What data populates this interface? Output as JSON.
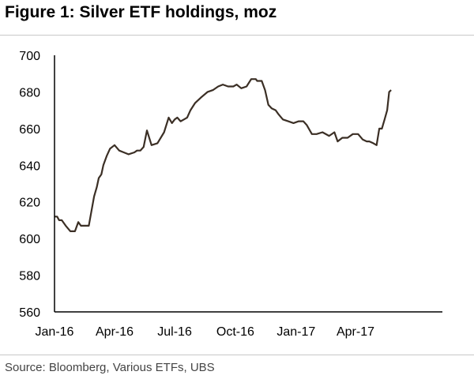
{
  "header": {
    "title": "Figure 1: Silver ETF holdings, moz"
  },
  "footer": {
    "source": "Source:  Bloomberg, Various ETFs, UBS"
  },
  "colors": {
    "line": "#3b2f25",
    "axis": "#000000",
    "rule": "#c8c8c8"
  },
  "chart_data": {
    "type": "line",
    "title": "Figure 1: Silver ETF holdings, moz",
    "xlabel": "",
    "ylabel": "",
    "ylim": [
      560,
      700
    ],
    "yticks": [
      560,
      580,
      600,
      620,
      640,
      660,
      680,
      700
    ],
    "xticks": [
      "Jan-16",
      "Apr-16",
      "Jul-16",
      "Oct-16",
      "Jan-17",
      "Apr-17"
    ],
    "xlim": [
      "2016-01-01",
      "2017-05-25"
    ],
    "grid": false,
    "legend": "none",
    "series": [
      {
        "x": [
          "2016-01-01",
          "2016-01-05",
          "2016-01-08",
          "2016-01-12",
          "2016-01-18",
          "2016-01-25",
          "2016-02-01",
          "2016-02-06",
          "2016-02-10",
          "2016-02-13",
          "2016-02-17",
          "2016-02-22",
          "2016-03-01",
          "2016-03-05",
          "2016-03-08",
          "2016-03-12",
          "2016-03-15",
          "2016-03-20",
          "2016-03-25",
          "2016-04-01",
          "2016-04-08",
          "2016-04-15",
          "2016-04-22",
          "2016-05-01",
          "2016-05-05",
          "2016-05-10",
          "2016-05-15",
          "2016-05-20",
          "2016-05-27",
          "2016-06-05",
          "2016-06-15",
          "2016-06-22",
          "2016-06-27",
          "2016-07-01",
          "2016-07-05",
          "2016-07-10",
          "2016-07-15",
          "2016-07-20",
          "2016-07-25",
          "2016-08-01",
          "2016-08-10",
          "2016-08-20",
          "2016-08-28",
          "2016-09-05",
          "2016-09-12",
          "2016-09-20",
          "2016-09-28",
          "2016-10-03",
          "2016-10-10",
          "2016-10-18",
          "2016-10-25",
          "2016-11-01",
          "2016-11-03",
          "2016-11-10",
          "2016-11-15",
          "2016-11-20",
          "2016-11-25",
          "2016-12-01",
          "2016-12-05",
          "2016-12-12",
          "2016-12-20",
          "2016-12-28",
          "2017-01-05",
          "2017-01-12",
          "2017-01-17",
          "2017-01-25",
          "2017-02-01",
          "2017-02-10",
          "2017-02-20",
          "2017-02-28",
          "2017-03-05",
          "2017-03-12",
          "2017-03-20",
          "2017-03-28",
          "2017-04-05",
          "2017-04-12",
          "2017-04-18",
          "2017-04-22",
          "2017-04-28",
          "2017-05-03",
          "2017-05-07",
          "2017-05-11",
          "2017-05-15",
          "2017-05-19",
          "2017-05-22",
          "2017-05-25"
        ],
        "values": [
          612,
          612,
          610,
          610,
          607,
          604,
          604,
          609,
          607,
          607,
          607,
          607,
          623,
          628,
          633,
          635,
          640,
          645,
          649,
          651,
          648,
          647,
          646,
          647,
          648,
          648,
          650,
          659,
          651,
          652,
          658,
          666,
          663,
          665,
          666,
          664,
          665,
          666,
          670,
          674,
          677,
          680,
          681,
          683,
          684,
          683,
          683,
          684,
          682,
          683,
          687,
          687,
          686,
          686,
          681,
          673,
          671,
          670,
          668,
          665,
          664,
          663,
          664,
          664,
          662,
          657,
          657,
          658,
          656,
          658,
          653,
          655,
          655,
          657,
          657,
          654,
          653,
          653,
          652,
          651,
          660,
          660,
          665,
          670,
          680,
          681
        ]
      }
    ]
  }
}
